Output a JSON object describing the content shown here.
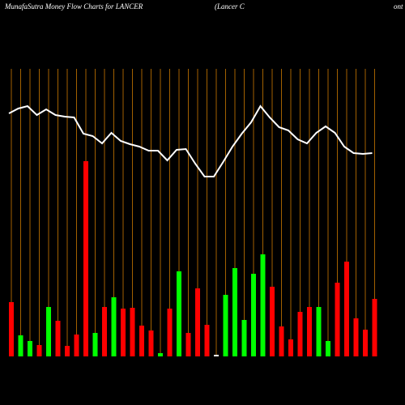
{
  "chart_data": {
    "type": "bar_line",
    "title": "MunafaSutra  Money Flow  Charts for LANCER",
    "subtitle": "(Lancer C",
    "subtitle_tail": "ont",
    "ylim": [
      0,
      440
    ],
    "grid_color": "#cc7a00",
    "bars": {
      "values": [
        67,
        26,
        19,
        14,
        61,
        44,
        13,
        27,
        241,
        29,
        61,
        73,
        59,
        60,
        38,
        32,
        4,
        59,
        105,
        29,
        84,
        39,
        2,
        76,
        109,
        45,
        102,
        126,
        86,
        37,
        21,
        55,
        61,
        61,
        19,
        91,
        117,
        47,
        33,
        71
      ],
      "colors": [
        "#ff0000",
        "#00ff00",
        "#00ff00",
        "#ff0000",
        "#00ff00",
        "#ff0000",
        "#ff0000",
        "#ff0000",
        "#ff0000",
        "#00ff00",
        "#ff0000",
        "#00ff00",
        "#ff0000",
        "#ff0000",
        "#ff0000",
        "#ff0000",
        "#00ff00",
        "#ff0000",
        "#00ff00",
        "#ff0000",
        "#ff0000",
        "#ff0000",
        "#ffffff",
        "#00ff00",
        "#00ff00",
        "#00ff00",
        "#00ff00",
        "#00ff00",
        "#ff0000",
        "#ff0000",
        "#ff0000",
        "#ff0000",
        "#ff0000",
        "#00ff00",
        "#00ff00",
        "#ff0000",
        "#ff0000",
        "#ff0000",
        "#ff0000",
        "#ff0000"
      ]
    },
    "line": {
      "color": "#ffffff",
      "values": [
        300,
        306,
        309,
        298,
        305,
        298,
        296,
        295,
        275,
        272,
        263,
        276,
        266,
        262,
        259,
        254,
        254,
        242,
        255,
        256,
        238,
        222,
        222,
        240,
        259,
        275,
        289,
        309,
        295,
        283,
        279,
        268,
        263,
        276,
        284,
        276,
        259,
        251,
        250,
        251
      ]
    }
  }
}
